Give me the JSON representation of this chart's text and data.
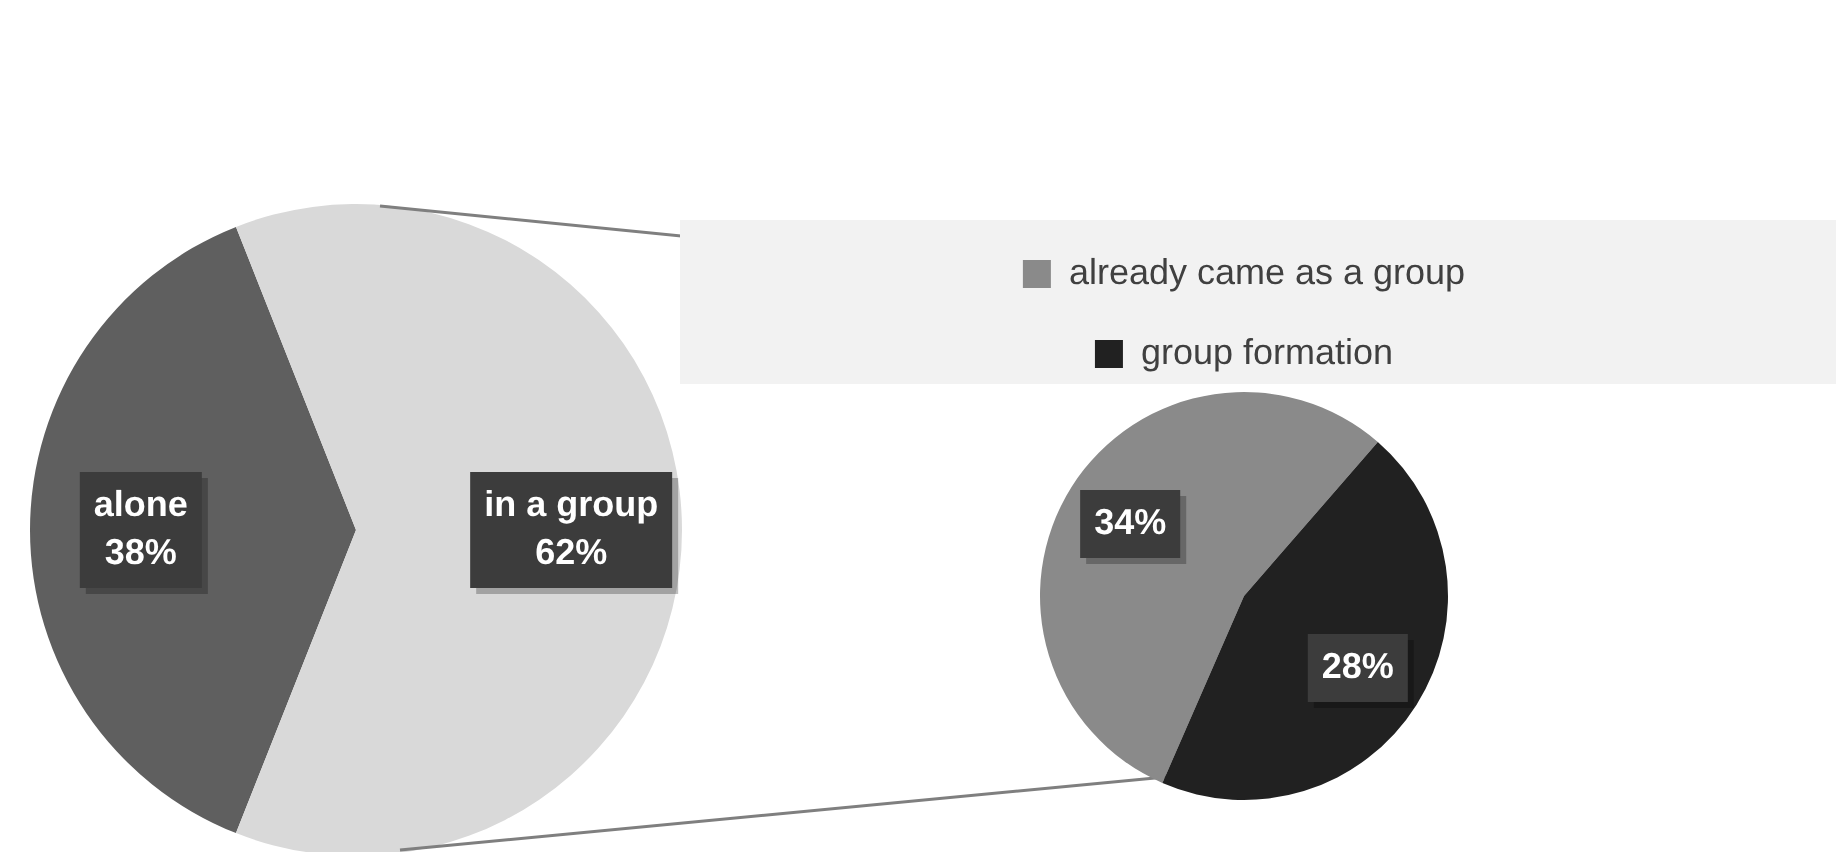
{
  "chart_data": [
    {
      "type": "pie",
      "categories": [
        "alone",
        "in a group"
      ],
      "values": [
        38,
        62
      ],
      "colors": [
        "#5f5f5f",
        "#d9d9d9"
      ],
      "value_labels": [
        "38%",
        "62%"
      ],
      "legend": false
    },
    {
      "type": "pie",
      "categories": [
        "already came as a group",
        "group formation"
      ],
      "values": [
        34,
        28
      ],
      "colors": [
        "#8a8a8a",
        "#212121"
      ],
      "value_labels": [
        "34%",
        "28%"
      ],
      "legend": "top"
    }
  ]
}
